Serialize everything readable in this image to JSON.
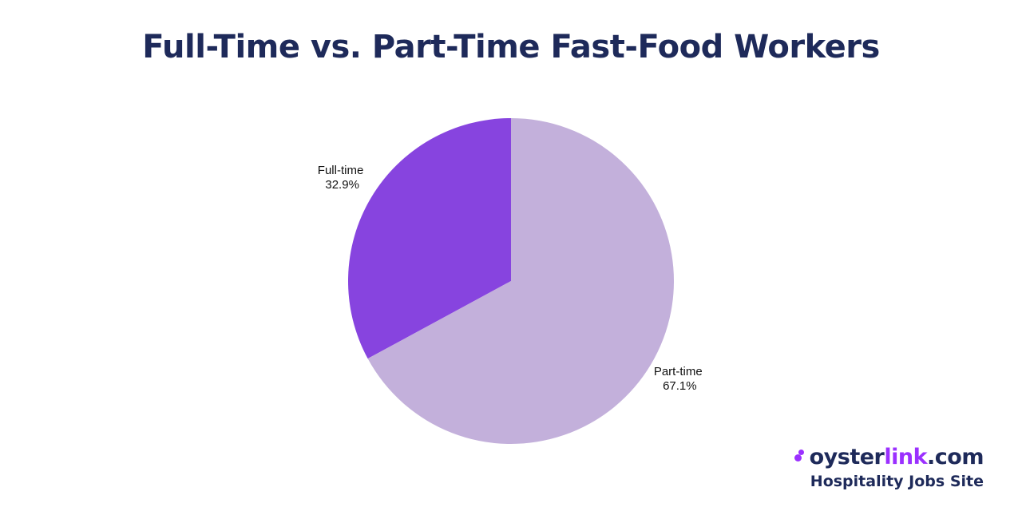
{
  "chart_data": {
    "type": "pie",
    "title": "Full-Time vs. Part-Time Fast-Food Workers",
    "slices": [
      {
        "label": "Full-time",
        "value": 32.9,
        "value_label": "32.9%",
        "color": "#8744df"
      },
      {
        "label": "Part-time",
        "value": 67.1,
        "value_label": "67.1%",
        "color": "#c3b0db"
      }
    ],
    "legend": "none"
  },
  "brand": {
    "name_part1": "oyster",
    "name_part2": "link",
    "name_part3": ".com",
    "tagline": "Hospitality Jobs Site",
    "colors": {
      "dark": "#1e2a5a",
      "accent": "#9b30ff"
    }
  }
}
